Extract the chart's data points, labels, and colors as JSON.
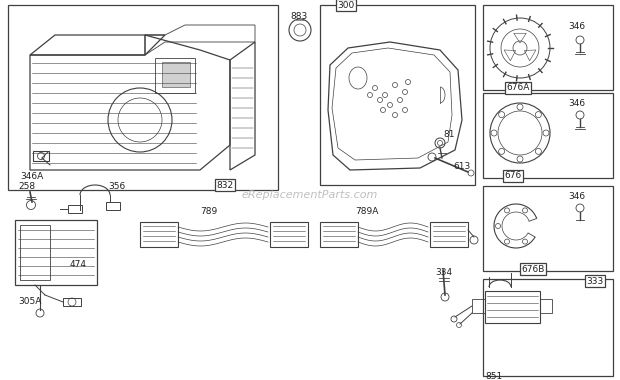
{
  "bg_color": "#ffffff",
  "line_color": "#404040",
  "watermark": "eReplacementParts.com",
  "parts": {
    "p832": "832",
    "p300": "300",
    "p346A": "346A",
    "p883": "883",
    "p81": "81",
    "p613": "613",
    "p346_1": "346",
    "p676A": "676A",
    "p346_2": "346",
    "p676": "676",
    "p346_3": "346",
    "p676B": "676B",
    "p333": "333",
    "p258": "258",
    "p356": "356",
    "p789A": "789A",
    "p789": "789",
    "p334": "334",
    "p851": "851",
    "p474": "474",
    "p305A": "305A"
  }
}
